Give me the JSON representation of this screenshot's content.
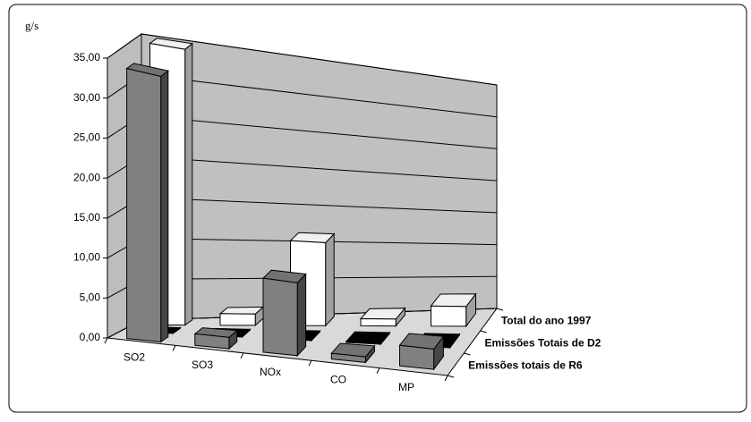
{
  "chart_data": {
    "type": "bar3d",
    "y_label": "g/s",
    "categories": [
      "SO2",
      "SO3",
      "NOx",
      "CO",
      "MP"
    ],
    "series": [
      {
        "name": "Emissões totais de R6",
        "color": "#808080",
        "values": [
          34,
          1.5,
          10,
          0.8,
          3
        ]
      },
      {
        "name": "Emissões Totais de D2",
        "color": "#000000",
        "values": [
          0.1,
          0.1,
          0.1,
          0.1,
          0.1
        ]
      },
      {
        "name": "Total do ano 1997",
        "color": "#ffffff",
        "values": [
          35,
          1.5,
          11.5,
          1,
          3
        ]
      }
    ],
    "ylim": [
      0,
      35
    ],
    "yticks": [
      {
        "value": 0,
        "label": "0,00"
      },
      {
        "value": 5,
        "label": "5,00"
      },
      {
        "value": 10,
        "label": "10,00"
      },
      {
        "value": 15,
        "label": "15,00"
      },
      {
        "value": 20,
        "label": "20,00"
      },
      {
        "value": 25,
        "label": "25,00"
      },
      {
        "value": 30,
        "label": "30,00"
      },
      {
        "value": 35,
        "label": "35,00"
      }
    ],
    "grid": true
  }
}
